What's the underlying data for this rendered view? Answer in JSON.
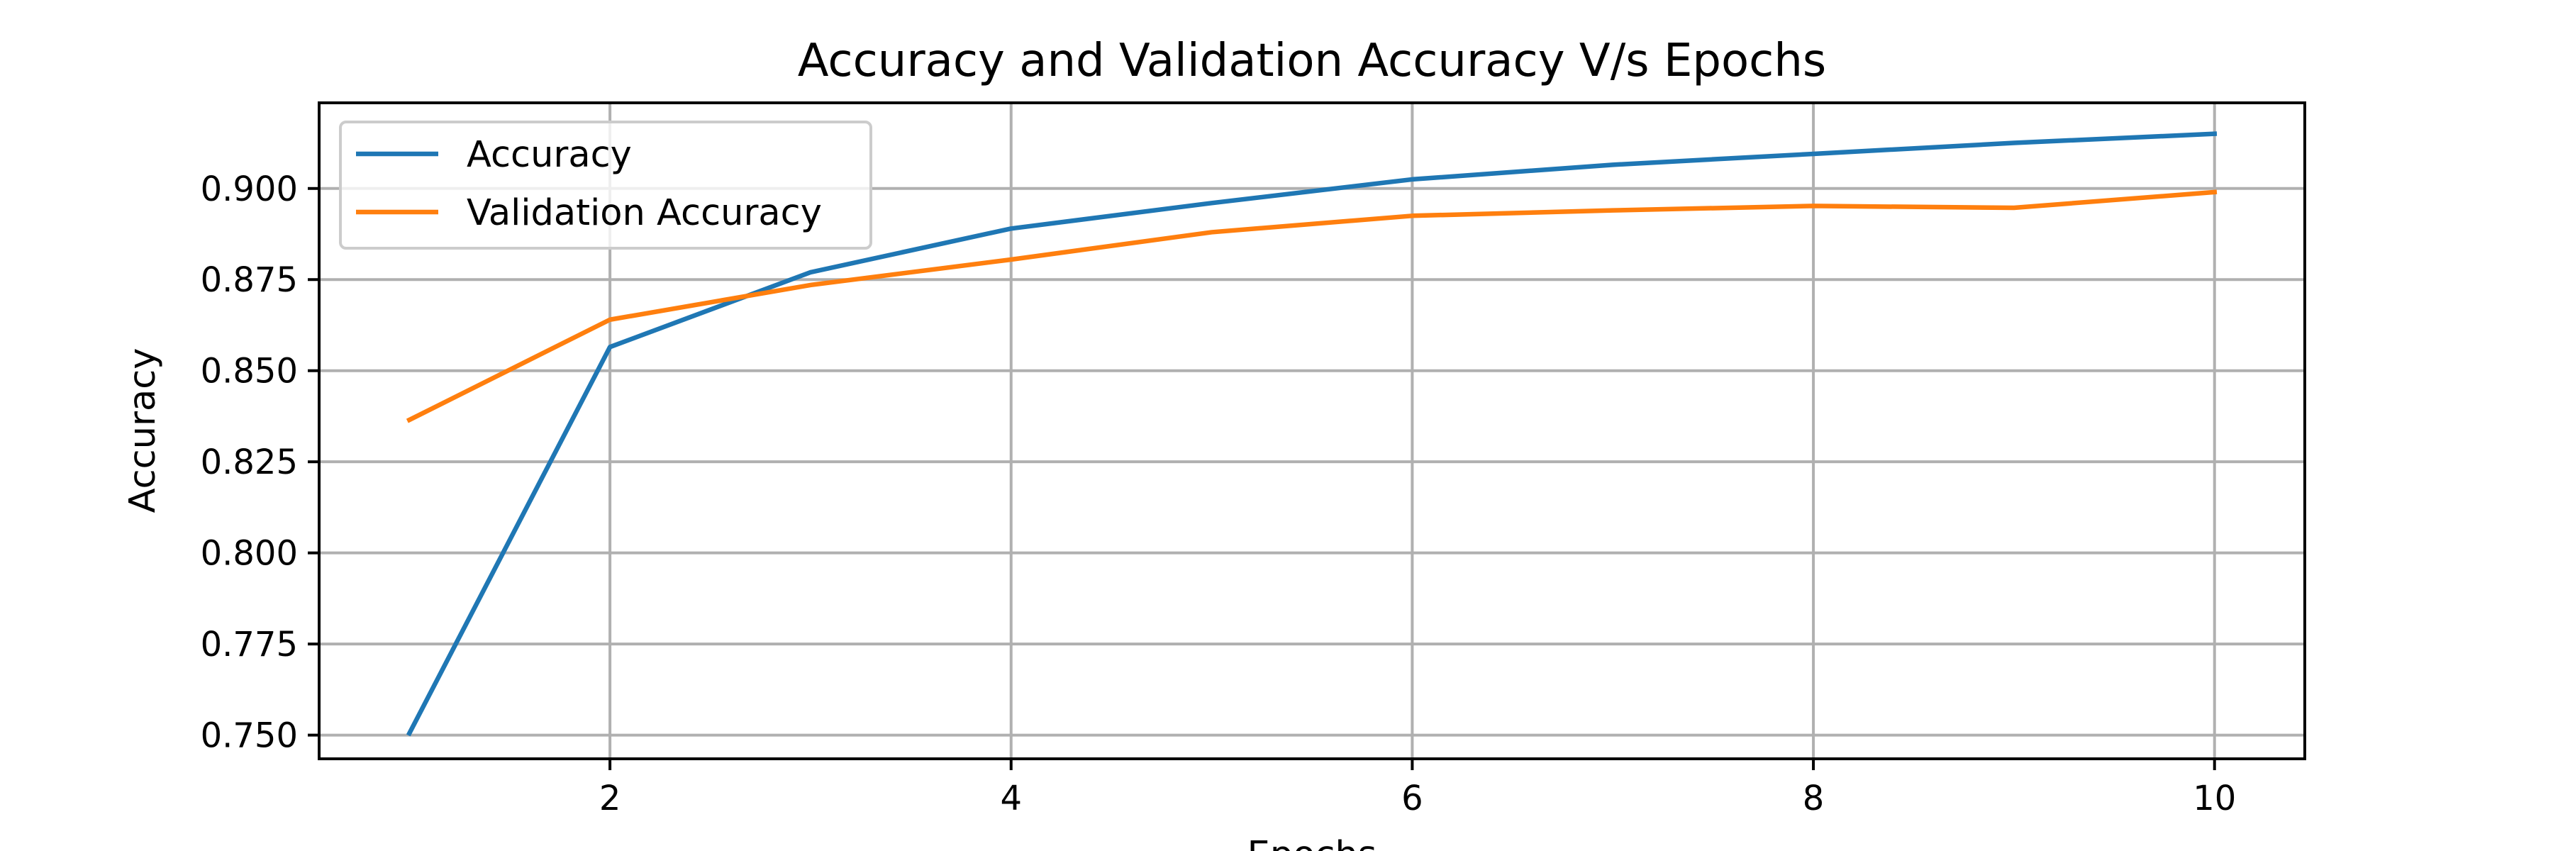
{
  "chart_data": {
    "type": "line",
    "title": "Accuracy and Validation Accuracy V/s Epochs",
    "xlabel": "Epochs",
    "ylabel": "Accuracy",
    "x": [
      1,
      2,
      3,
      4,
      5,
      6,
      7,
      8,
      9,
      10
    ],
    "xlim": [
      0.55,
      10.45
    ],
    "ylim": [
      0.7435,
      0.9235
    ],
    "xticks": [
      2,
      4,
      6,
      8,
      10
    ],
    "yticks": [
      0.75,
      0.775,
      0.8,
      0.825,
      0.85,
      0.875,
      0.9
    ],
    "xtick_labels": [
      "2",
      "4",
      "6",
      "8",
      "10"
    ],
    "ytick_labels": [
      "0.750",
      "0.775",
      "0.800",
      "0.825",
      "0.850",
      "0.875",
      "0.900"
    ],
    "grid": true,
    "legend_position": "upper-left",
    "series": [
      {
        "name": "Accuracy",
        "color": "#1f77b4",
        "values": [
          0.7505,
          0.8565,
          0.877,
          0.889,
          0.896,
          0.9025,
          0.9065,
          0.9095,
          0.9125,
          0.915
        ]
      },
      {
        "name": "Validation Accuracy",
        "color": "#ff7f0e",
        "values": [
          0.8365,
          0.864,
          0.8735,
          0.8805,
          0.888,
          0.8925,
          0.894,
          0.8952,
          0.8947,
          0.899
        ]
      }
    ]
  }
}
